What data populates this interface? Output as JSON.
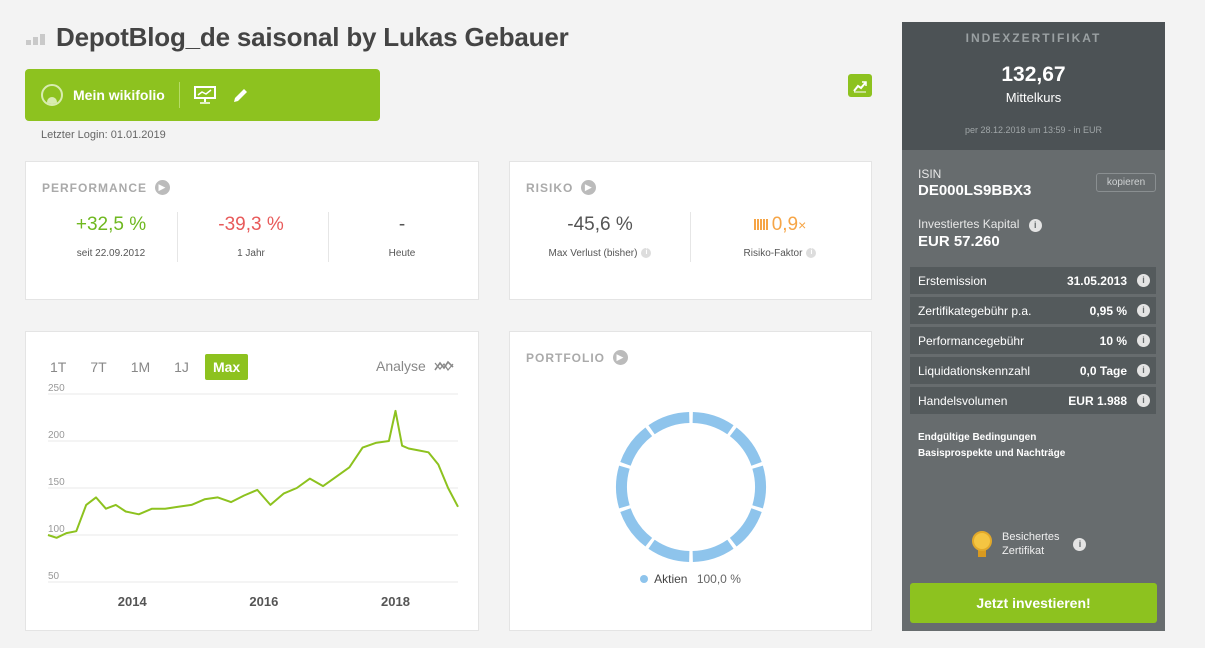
{
  "header": {
    "title": "DepotBlog_de saisonal by Lukas Gebauer",
    "mein_wikifolio": "Mein wikifolio",
    "login": "Letzter Login: 01.01.2019"
  },
  "performance": {
    "heading": "PERFORMANCE",
    "items": [
      {
        "value": "+32,5 %",
        "label": "seit 22.09.2012"
      },
      {
        "value": "-39,3 %",
        "label": "1 Jahr"
      },
      {
        "value": "-",
        "label": "Heute"
      }
    ]
  },
  "risiko": {
    "heading": "RISIKO",
    "max_verlust": {
      "value": "-45,6 %",
      "label": "Max Verlust (bisher)"
    },
    "faktor": {
      "value": "0,9",
      "suffix": "×",
      "label": "Risiko-Faktor"
    }
  },
  "chart": {
    "tabs": [
      "1T",
      "7T",
      "1M",
      "1J",
      "Max"
    ],
    "active_tab": "Max",
    "analyse": "Analyse"
  },
  "chart_data": {
    "type": "line",
    "title": "",
    "xlabel": "",
    "ylabel": "",
    "y_ticks": [
      50,
      100,
      150,
      200,
      250
    ],
    "x_tick_labels": [
      "2014",
      "2016",
      "2018"
    ],
    "ylim": [
      50,
      250
    ],
    "series": [
      {
        "color": "#8dc21f",
        "x": [
          2012.72,
          2012.85,
          2013.0,
          2013.15,
          2013.3,
          2013.45,
          2013.6,
          2013.75,
          2013.9,
          2014.1,
          2014.3,
          2014.5,
          2014.7,
          2014.9,
          2015.1,
          2015.3,
          2015.5,
          2015.7,
          2015.9,
          2016.1,
          2016.3,
          2016.5,
          2016.7,
          2016.9,
          2017.1,
          2017.3,
          2017.5,
          2017.7,
          2017.9,
          2018.0,
          2018.1,
          2018.2,
          2018.35,
          2018.5,
          2018.65,
          2018.8,
          2018.95
        ],
        "y": [
          100,
          97,
          102,
          104,
          132,
          140,
          128,
          132,
          125,
          122,
          128,
          128,
          130,
          132,
          138,
          140,
          135,
          142,
          148,
          132,
          144,
          150,
          160,
          152,
          162,
          172,
          193,
          198,
          200,
          232,
          195,
          192,
          190,
          188,
          175,
          150,
          130
        ]
      }
    ]
  },
  "portfolio": {
    "heading": "PORTFOLIO",
    "legend_label": "Aktien",
    "legend_value": "100,0 %",
    "segments": 10,
    "color": "#8ec4ec"
  },
  "sidebar": {
    "caption": "INDEXZERTIFIKAT",
    "price": "132,67",
    "price_label": "Mittelkurs",
    "price_date": "per 28.12.2018 um 13:59 - in EUR",
    "isin_label": "ISIN",
    "isin": "DE000LS9BBX3",
    "copy": "kopieren",
    "kapital_label": "Investiertes Kapital",
    "kapital": "EUR 57.260",
    "rows": [
      {
        "label": "Erstemission",
        "value": "31.05.2013"
      },
      {
        "label": "Zertifikategebühr p.a.",
        "value": "0,95 %"
      },
      {
        "label": "Performancegebühr",
        "value": "10 %"
      },
      {
        "label": "Liquidationskennzahl",
        "value": "0,0 Tage"
      },
      {
        "label": "Handelsvolumen",
        "value": "EUR 1.988"
      }
    ],
    "links": [
      "Endgültige Bedingungen",
      "Basisprospekte und Nachträge"
    ],
    "badge_line1": "Besichertes",
    "badge_line2": "Zertifikat",
    "invest": "Jetzt investieren!"
  },
  "colors": {
    "accent": "#8dc21f",
    "positive": "#6fb820",
    "negative": "#e85a5a",
    "risk": "#f6a546",
    "sidebar_top": "#4c5255",
    "sidebar": "#676c6e"
  }
}
